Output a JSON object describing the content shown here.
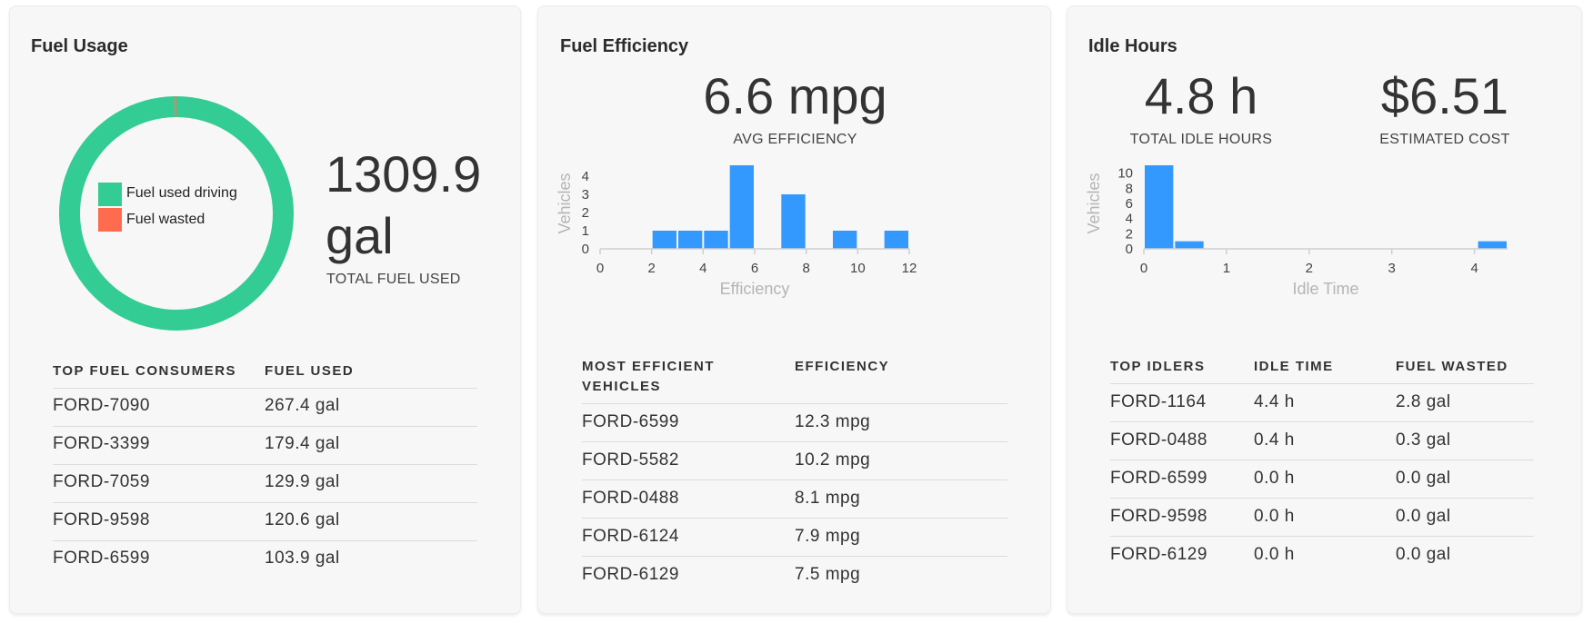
{
  "cards": {
    "fuel_usage": {
      "title": "Fuel Usage",
      "total_value": "1309.9",
      "total_unit": "gal",
      "total_label": "TOTAL FUEL USED",
      "colors": {
        "driving": "#33cc94",
        "wasted": "#ff6b4f"
      },
      "table": {
        "headers": [
          "TOP FUEL CONSUMERS",
          "FUEL USED"
        ],
        "rows": [
          [
            "FORD-7090",
            "267.4 gal"
          ],
          [
            "FORD-3399",
            "179.4 gal"
          ],
          [
            "FORD-7059",
            "129.9 gal"
          ],
          [
            "FORD-9598",
            "120.6 gal"
          ],
          [
            "FORD-6599",
            "103.9 gal"
          ]
        ]
      }
    },
    "fuel_efficiency": {
      "title": "Fuel Efficiency",
      "avg_value": "6.6 mpg",
      "avg_label": "AVG EFFICIENCY",
      "table": {
        "headers": [
          "MOST EFFICIENT VEHICLES",
          "EFFICIENCY"
        ],
        "header_lines": [
          "MOST EFFICIENT",
          "VEHICLES"
        ],
        "rows": [
          [
            "FORD-6599",
            "12.3 mpg"
          ],
          [
            "FORD-5582",
            "10.2 mpg"
          ],
          [
            "FORD-0488",
            "8.1 mpg"
          ],
          [
            "FORD-6124",
            "7.9 mpg"
          ],
          [
            "FORD-6129",
            "7.5 mpg"
          ]
        ]
      }
    },
    "idle_hours": {
      "title": "Idle Hours",
      "total_value": "4.8 h",
      "total_label": "TOTAL IDLE HOURS",
      "cost_value": "$6.51",
      "cost_label": "ESTIMATED COST",
      "table": {
        "headers": [
          "TOP IDLERS",
          "IDLE TIME",
          "FUEL WASTED"
        ],
        "rows": [
          [
            "FORD-1164",
            "4.4 h",
            "2.8 gal"
          ],
          [
            "FORD-0488",
            "0.4 h",
            "0.3 gal"
          ],
          [
            "FORD-6599",
            "0.0 h",
            "0.0 gal"
          ],
          [
            "FORD-9598",
            "0.0 h",
            "0.0 gal"
          ],
          [
            "FORD-6129",
            "0.0 h",
            "0.0 gal"
          ]
        ]
      }
    }
  },
  "chart_data": [
    {
      "type": "pie",
      "labels": [
        "Fuel used driving",
        "Fuel wasted"
      ],
      "values": [
        1306.8,
        3.1
      ],
      "colors": [
        "#33cc94",
        "#ff6b4f"
      ],
      "legend": "center"
    },
    {
      "type": "bar",
      "xlabel": "Efficiency",
      "ylabel": "Vehicles",
      "xlim": [
        0,
        12
      ],
      "ylim": [
        0,
        5
      ],
      "xticks": [
        0,
        2,
        4,
        6,
        8,
        10,
        12
      ],
      "yticks": [
        0,
        1,
        2,
        3,
        4,
        5
      ],
      "bins": [
        {
          "x0": 2,
          "x1": 3,
          "value": 1
        },
        {
          "x0": 3,
          "x1": 4,
          "value": 1
        },
        {
          "x0": 4,
          "x1": 5,
          "value": 1
        },
        {
          "x0": 5,
          "x1": 6,
          "value": 5
        },
        {
          "x0": 7,
          "x1": 8,
          "value": 3
        },
        {
          "x0": 9,
          "x1": 10,
          "value": 1
        },
        {
          "x0": 11,
          "x1": 12,
          "value": 1
        }
      ],
      "color": "#3399ff",
      "grid": false
    },
    {
      "type": "bar",
      "xlabel": "Idle Time",
      "ylabel": "Vehicles",
      "xlim": [
        0,
        4.4
      ],
      "ylim": [
        0,
        12
      ],
      "xticks": [
        0,
        1,
        2,
        3,
        4
      ],
      "yticks": [
        0,
        2,
        4,
        6,
        8,
        10,
        12
      ],
      "bins": [
        {
          "x0": 0,
          "x1": 0.367,
          "value": 12
        },
        {
          "x0": 0.367,
          "x1": 0.733,
          "value": 1
        },
        {
          "x0": 4.033,
          "x1": 4.4,
          "value": 1
        }
      ],
      "color": "#3399ff",
      "grid": false
    }
  ]
}
